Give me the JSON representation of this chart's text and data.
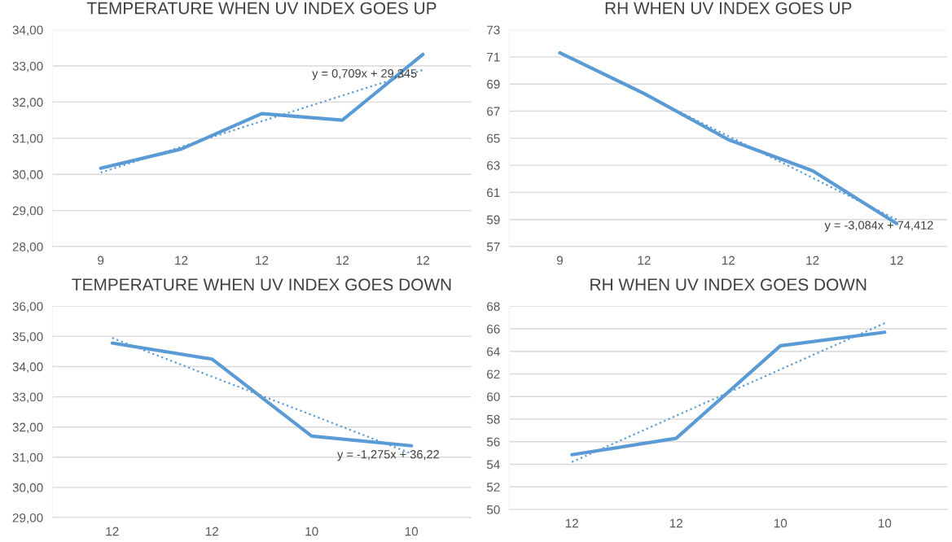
{
  "chart_data": [
    {
      "type": "line",
      "title": "TEMPERATURE WHEN UV INDEX GOES UP",
      "categories": [
        "9",
        "12",
        "12",
        "12",
        "12"
      ],
      "ylim": [
        28,
        34
      ],
      "yticks": [
        {
          "value": 28,
          "label": "28,00"
        },
        {
          "value": 29,
          "label": "29,00"
        },
        {
          "value": 30,
          "label": "30,00"
        },
        {
          "value": 31,
          "label": "31,00"
        },
        {
          "value": 32,
          "label": "32,00"
        },
        {
          "value": 33,
          "label": "33,00"
        },
        {
          "value": 34,
          "label": "34,00"
        }
      ],
      "grid": "y",
      "annotations": [
        "y = 0,709x + 29,345"
      ],
      "series": [
        {
          "color": "#5b9bd5",
          "values": [
            30.17,
            30.7,
            31.68,
            31.5,
            33.32
          ],
          "line_style": "solid"
        },
        {
          "color": "#5b9bd5",
          "values": [
            30.05,
            30.76,
            31.47,
            32.18,
            32.89
          ],
          "line_style": "dotted"
        }
      ]
    },
    {
      "type": "line",
      "title": "RH WHEN UV INDEX GOES UP",
      "categories": [
        "9",
        "12",
        "12",
        "12",
        "12"
      ],
      "ylim": [
        57,
        73
      ],
      "yticks": [
        57,
        59,
        61,
        63,
        65,
        67,
        69,
        71,
        73
      ],
      "grid": "y",
      "annotations": [
        "y = -3,084x + 74,412"
      ],
      "series": [
        {
          "color": "#5b9bd5",
          "values": [
            71.3,
            68.3,
            64.9,
            62.6,
            58.7
          ],
          "line_style": "solid"
        },
        {
          "color": "#5b9bd5",
          "values": [
            71.33,
            68.24,
            65.16,
            62.08,
            58.99
          ],
          "line_style": "dotted"
        }
      ]
    },
    {
      "type": "line",
      "title": "TEMPERATURE WHEN UV INDEX GOES DOWN",
      "categories": [
        "12",
        "12",
        "10",
        "10"
      ],
      "ylim": [
        29,
        36
      ],
      "yticks": [
        {
          "value": 29,
          "label": "29,00"
        },
        {
          "value": 30,
          "label": "30,00"
        },
        {
          "value": 31,
          "label": "31,00"
        },
        {
          "value": 32,
          "label": "32,00"
        },
        {
          "value": 33,
          "label": "33,00"
        },
        {
          "value": 34,
          "label": "34,00"
        },
        {
          "value": 35,
          "label": "35,00"
        },
        {
          "value": 36,
          "label": "36,00"
        }
      ],
      "grid": "y",
      "annotations": [
        "y = -1,275x + 36,22"
      ],
      "series": [
        {
          "color": "#5b9bd5",
          "values": [
            34.78,
            34.25,
            31.7,
            31.38
          ],
          "line_style": "solid"
        },
        {
          "color": "#5b9bd5",
          "values": [
            34.95,
            33.67,
            32.4,
            31.12
          ],
          "line_style": "dotted"
        }
      ]
    },
    {
      "type": "line",
      "title": "RH WHEN UV INDEX GOES DOWN",
      "categories": [
        "12",
        "12",
        "10",
        "10"
      ],
      "ylim": [
        50,
        68
      ],
      "yticks": [
        50,
        52,
        54,
        56,
        58,
        60,
        62,
        64,
        66,
        68
      ],
      "grid": "y",
      "series": [
        {
          "color": "#5b9bd5",
          "values": [
            54.85,
            56.3,
            64.5,
            65.7
          ],
          "line_style": "solid"
        },
        {
          "color": "#5b9bd5",
          "values": [
            54.2,
            58.3,
            62.4,
            66.5
          ],
          "line_style": "dotted"
        }
      ]
    }
  ]
}
